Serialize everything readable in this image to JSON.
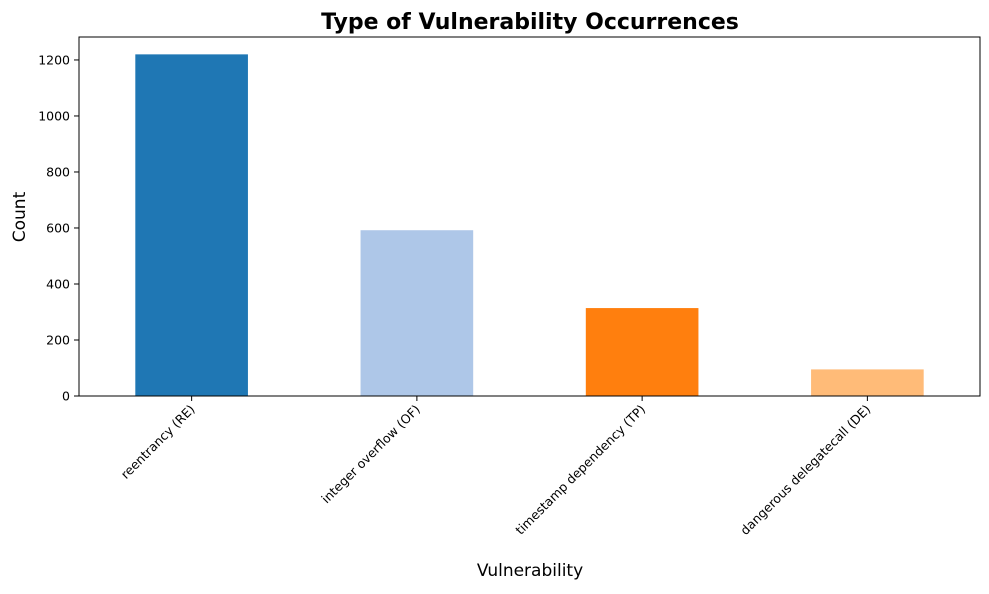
{
  "chart_data": {
    "type": "bar",
    "title": "Type of Vulnerability Occurrences",
    "xlabel": "Vulnerability",
    "ylabel": "Count",
    "categories": [
      "reentrancy (RE)",
      "integer overflow (OF)",
      "timestamp dependency (TP)",
      "dangerous delegatecall (DE)"
    ],
    "values": [
      1220,
      592,
      314,
      95
    ],
    "colors": [
      "#1f77b4",
      "#aec7e8",
      "#ff7f0e",
      "#ffbb78"
    ],
    "ylim": [
      0,
      1282
    ],
    "yticks": [
      0,
      200,
      400,
      600,
      800,
      1000,
      1200
    ],
    "grid": false,
    "legend": "none"
  }
}
